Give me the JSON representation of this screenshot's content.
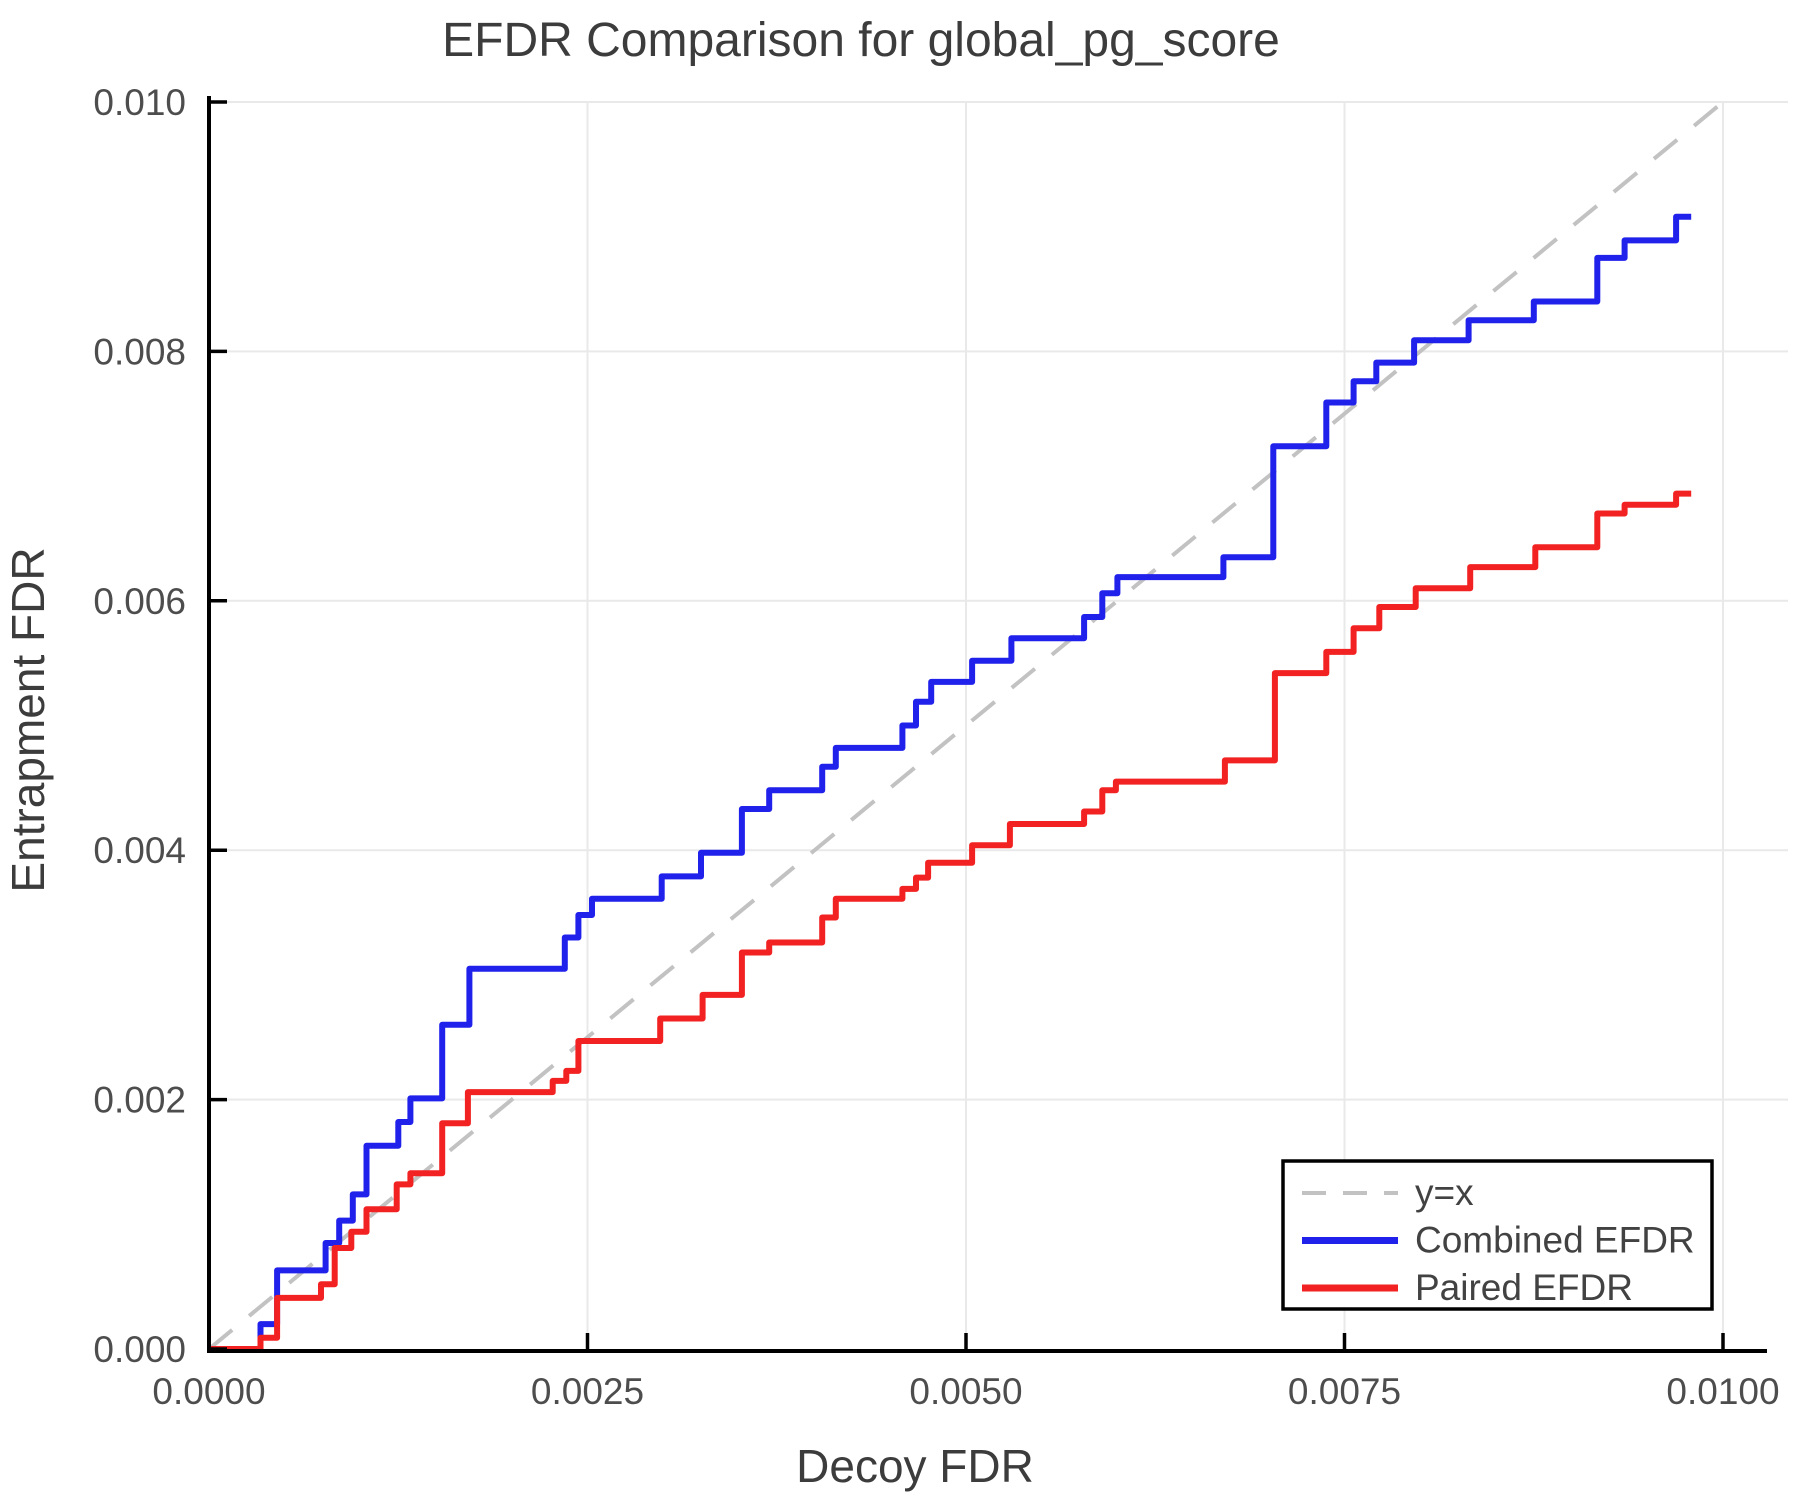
{
  "title": "EFDR Comparison for global_pg_score",
  "colors": {
    "title_text": "#3c3c3c",
    "axis_label_text": "#3c3c3c",
    "tick_label_text": "#4d4d4d",
    "spine": "#000000",
    "grid": "#e9e9e9",
    "identity_line": "#c2c2c2",
    "combined_line": "#2121ec",
    "paired_line": "#f22222",
    "legend_border": "#000000",
    "legend_bg": "#ffffff",
    "legend_text": "#424242"
  },
  "chart_data": {
    "type": "line",
    "title": "EFDR Comparison for global_pg_score",
    "xlabel": "Decoy FDR",
    "ylabel": "Entrapment FDR",
    "xlim": [
      0,
      0.01
    ],
    "ylim": [
      0,
      0.01
    ],
    "grid": true,
    "legend_position": "bottom-right",
    "x_ticks": {
      "values": [
        0,
        0.0025,
        0.005,
        0.0075,
        0.01
      ],
      "labels": [
        "0.0000",
        "0.0025",
        "0.0050",
        "0.0075",
        "0.0100"
      ]
    },
    "y_ticks": {
      "values": [
        0,
        0.002,
        0.004,
        0.006,
        0.008,
        0.01
      ],
      "labels": [
        "0.000",
        "0.002",
        "0.004",
        "0.006",
        "0.008",
        "0.010"
      ]
    },
    "series": [
      {
        "name": "y=x",
        "kind": "reference",
        "style": "dashed",
        "color": "#c2c2c2",
        "points": [
          [
            0,
            0
          ],
          [
            0.01,
            0.01
          ]
        ]
      },
      {
        "name": "Combined EFDR",
        "kind": "step",
        "style": "solid",
        "color": "#2121ec",
        "start": [
          0,
          0
        ],
        "end_x": 0.00979,
        "steps": [
          [
            0.00034,
            0.0002
          ],
          [
            0.00045,
            0.00063
          ],
          [
            0.00077,
            0.00085
          ],
          [
            0.00086,
            0.00103
          ],
          [
            0.00095,
            0.00124
          ],
          [
            0.00104,
            0.00163
          ],
          [
            0.00125,
            0.00182
          ],
          [
            0.00133,
            0.00201
          ],
          [
            0.00154,
            0.0026
          ],
          [
            0.00172,
            0.00305
          ],
          [
            0.00235,
            0.0033
          ],
          [
            0.00244,
            0.00348
          ],
          [
            0.00253,
            0.00361
          ],
          [
            0.00299,
            0.00379
          ],
          [
            0.00325,
            0.00398
          ],
          [
            0.00352,
            0.00433
          ],
          [
            0.0037,
            0.00448
          ],
          [
            0.00405,
            0.00467
          ],
          [
            0.00414,
            0.00482
          ],
          [
            0.00458,
            0.005
          ],
          [
            0.00467,
            0.00519
          ],
          [
            0.00477,
            0.00535
          ],
          [
            0.00504,
            0.00552
          ],
          [
            0.0053,
            0.0057
          ],
          [
            0.00578,
            0.00587
          ],
          [
            0.0059,
            0.00606
          ],
          [
            0.006,
            0.00619
          ],
          [
            0.0067,
            0.00635
          ],
          [
            0.00703,
            0.00724
          ],
          [
            0.00738,
            0.00759
          ],
          [
            0.00756,
            0.00776
          ],
          [
            0.00771,
            0.00791
          ],
          [
            0.00796,
            0.00809
          ],
          [
            0.00832,
            0.00825
          ],
          [
            0.00875,
            0.0084
          ],
          [
            0.00917,
            0.00875
          ],
          [
            0.00935,
            0.00889
          ],
          [
            0.00969,
            0.00908
          ]
        ]
      },
      {
        "name": "Paired EFDR",
        "kind": "step",
        "style": "solid",
        "color": "#f22222",
        "start": [
          0,
          0
        ],
        "end_x": 0.00979,
        "steps": [
          [
            0.00034,
            9e-05
          ],
          [
            0.00045,
            0.00041
          ],
          [
            0.00074,
            0.00052
          ],
          [
            0.00083,
            0.00081
          ],
          [
            0.00094,
            0.00094
          ],
          [
            0.00104,
            0.00112
          ],
          [
            0.00124,
            0.00132
          ],
          [
            0.00133,
            0.00141
          ],
          [
            0.00154,
            0.00181
          ],
          [
            0.00171,
            0.00206
          ],
          [
            0.00227,
            0.00215
          ],
          [
            0.00236,
            0.00223
          ],
          [
            0.00244,
            0.00247
          ],
          [
            0.00298,
            0.00265
          ],
          [
            0.00326,
            0.00284
          ],
          [
            0.00352,
            0.00318
          ],
          [
            0.0037,
            0.00326
          ],
          [
            0.00405,
            0.00346
          ],
          [
            0.00414,
            0.00361
          ],
          [
            0.00458,
            0.00369
          ],
          [
            0.00467,
            0.00378
          ],
          [
            0.00475,
            0.0039
          ],
          [
            0.00504,
            0.00404
          ],
          [
            0.00529,
            0.00421
          ],
          [
            0.00578,
            0.00431
          ],
          [
            0.0059,
            0.00448
          ],
          [
            0.00599,
            0.00455
          ],
          [
            0.00671,
            0.00472
          ],
          [
            0.00704,
            0.00542
          ],
          [
            0.00738,
            0.00559
          ],
          [
            0.00756,
            0.00578
          ],
          [
            0.00773,
            0.00595
          ],
          [
            0.00797,
            0.0061
          ],
          [
            0.00833,
            0.00627
          ],
          [
            0.00876,
            0.00643
          ],
          [
            0.00917,
            0.0067
          ],
          [
            0.00935,
            0.00677
          ],
          [
            0.00969,
            0.00686
          ]
        ]
      }
    ]
  },
  "legend": {
    "items": [
      {
        "label": "y=x"
      },
      {
        "label": "Combined EFDR"
      },
      {
        "label": "Paired EFDR"
      }
    ]
  }
}
